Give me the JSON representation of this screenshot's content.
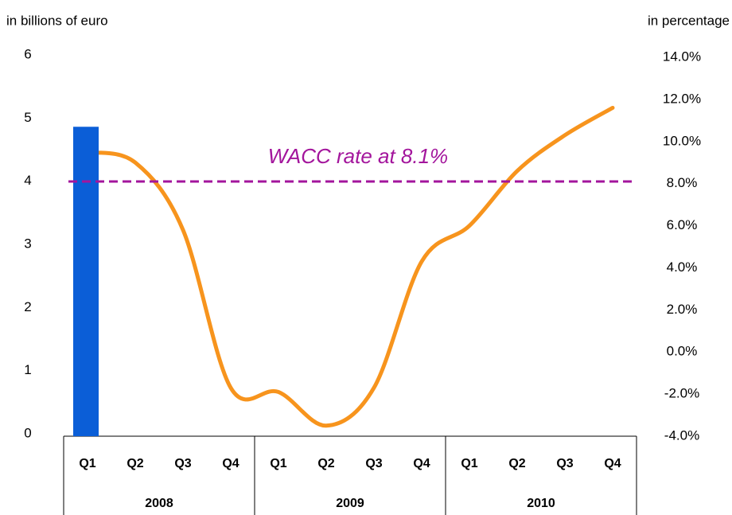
{
  "chart_data": {
    "type": "combo",
    "y_label": "in billions of euro",
    "y2_label": "in percentage",
    "categories": [
      "Q1",
      "Q2",
      "Q3",
      "Q4",
      "Q1",
      "Q2",
      "Q3",
      "Q4",
      "Q1",
      "Q2",
      "Q3",
      "Q4"
    ],
    "groups": [
      "2008",
      "2009",
      "2010"
    ],
    "series": [
      {
        "type": "bar",
        "color": "#0b5ed7",
        "values": [
          4.9,
          null,
          null,
          null,
          null,
          null,
          null,
          null,
          null,
          null,
          null,
          null
        ]
      },
      {
        "type": "line",
        "axis": "y2",
        "color": "#f7941d",
        "values": [
          9.5,
          9.0,
          5.8,
          -1.7,
          -1.9,
          -3.5,
          -1.7,
          4.3,
          6.0,
          8.6,
          10.3,
          11.6
        ]
      }
    ],
    "ylim": [
      0,
      6
    ],
    "yticks": [
      0,
      1,
      2,
      3,
      4,
      5,
      6
    ],
    "y2lim": [
      -4,
      14
    ],
    "y2ticks": [
      {
        "value": -4,
        "label": "-4.0%"
      },
      {
        "value": -2,
        "label": "-2.0%"
      },
      {
        "value": 0,
        "label": "0.0%"
      },
      {
        "value": 2,
        "label": "2.0%"
      },
      {
        "value": 4,
        "label": "4.0%"
      },
      {
        "value": 6,
        "label": "6.0%"
      },
      {
        "value": 8,
        "label": "8.0%"
      },
      {
        "value": 10,
        "label": "10.0%"
      },
      {
        "value": 12,
        "label": "12.0%"
      },
      {
        "value": 14,
        "label": "14.0%"
      }
    ],
    "reference_line": {
      "value": 8.1,
      "axis": "y2",
      "label": "WACC rate at 8.1%",
      "color": "#a3159c"
    }
  }
}
